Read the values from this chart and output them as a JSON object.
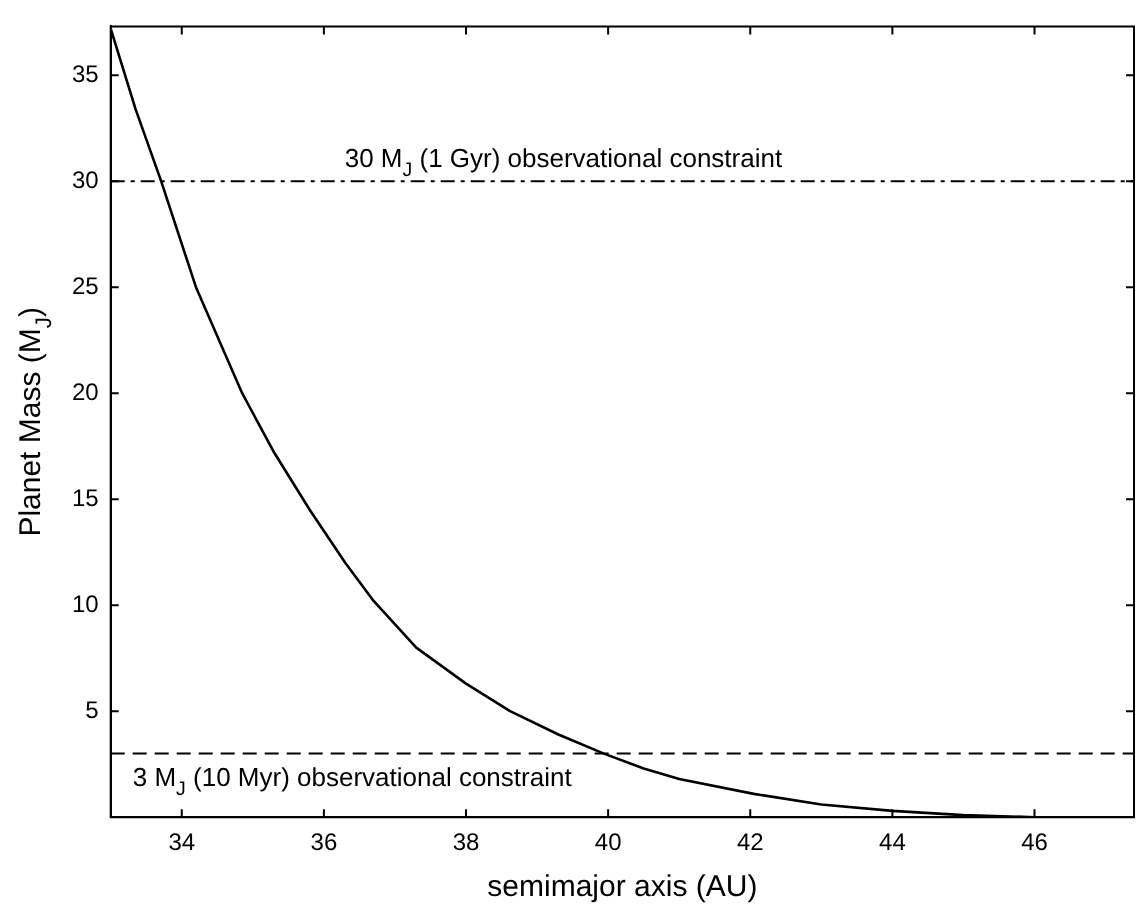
{
  "chart_data": {
    "type": "line",
    "xlabel": "semimajor axis (AU)",
    "ylabel": "Planet Mass (M$_{J}$)",
    "x": [
      33,
      33.35,
      33.71,
      34.2,
      34.85,
      35.3,
      35.8,
      36.3,
      36.7,
      37.3,
      38,
      38.62,
      39.3,
      39.94,
      40.5,
      41,
      42.05,
      43,
      44,
      45,
      46,
      47.4
    ],
    "series": [
      {
        "color": "#000000",
        "values": [
          37.2,
          33.4,
          30,
          25,
          20,
          17.2,
          14.5,
          12,
          10.2,
          8,
          6.3,
          5,
          3.9,
          3,
          2.3,
          1.8,
          1.1,
          0.6,
          0.3,
          0.1,
          0,
          0
        ]
      }
    ],
    "xlim": [
      33,
      47.4
    ],
    "ylim": [
      0,
      37.3
    ],
    "xticks": [
      34,
      36,
      38,
      40,
      42,
      44,
      46
    ],
    "yticks": [
      5,
      10,
      15,
      20,
      25,
      30,
      35
    ],
    "ref_lines": [
      {
        "axis": "y",
        "value": 30,
        "label": "30 M$_{J}$ (1 Gyr) observational constraint",
        "line_style": "dashdot",
        "color": "#000000"
      },
      {
        "axis": "y",
        "value": 3,
        "label": "3 M$_{J}$ (10 Myr) observational constraint",
        "line_style": "dashed",
        "color": "#000000"
      }
    ],
    "grid": false,
    "legend": false,
    "marker": "none",
    "line_style": "solid"
  }
}
